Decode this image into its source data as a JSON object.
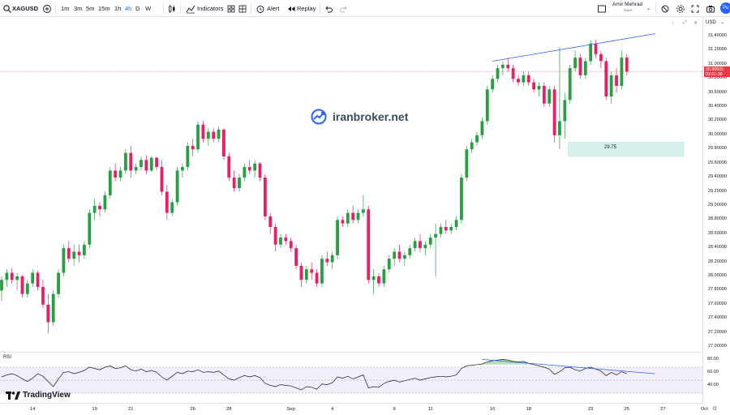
{
  "toolbar": {
    "symbol": "XAGUSD",
    "timeframes": [
      "1m",
      "3m",
      "5m",
      "15m",
      "1h",
      "4h",
      "D",
      "W"
    ],
    "active_timeframe": "4h",
    "indicators_label": "Indicators",
    "alert_label": "Alert",
    "replay_label": "Replay",
    "user_name": "Amir Mehrad",
    "user_status": "Save",
    "publish_label": "Pu"
  },
  "price_axis": {
    "currency": "USD",
    "labels": [
      "31.40000",
      "31.20000",
      "31.00000",
      "30.80000",
      "30.60000",
      "30.40000",
      "30.20000",
      "30.00000",
      "29.80000",
      "29.60000",
      "29.40000",
      "29.20000",
      "29.00000",
      "28.80000",
      "28.60000",
      "28.40000",
      "28.20000",
      "28.00000",
      "27.80000",
      "27.60000",
      "27.40000",
      "27.20000",
      "27.00000"
    ],
    "current_price": "30.90500",
    "countdown": "02:01:38"
  },
  "rsi": {
    "label": "RSI",
    "levels": [
      "80.00",
      "60.00",
      "40.00"
    ]
  },
  "time_axis": [
    "14",
    "19",
    "21",
    "26",
    "28",
    "Sep",
    "4",
    "9",
    "11",
    "16",
    "18",
    "23",
    "25",
    "27",
    "Oct"
  ],
  "annotations": {
    "zone_label": "29.75"
  },
  "watermark": "iranbroker.net",
  "brand": "TradingView",
  "colors": {
    "up": "#26a040",
    "down": "#e91e63",
    "trendline": "#2962ff",
    "zone": "#d6f0ec",
    "price_tag": "#f23645",
    "accent": "#2962ff"
  },
  "chart_data": {
    "type": "candlestick",
    "ylim": [
      27.0,
      31.5
    ],
    "candles": [
      [
        27.8,
        28.0,
        27.65,
        27.95
      ],
      [
        27.95,
        28.1,
        27.85,
        28.05
      ],
      [
        28.05,
        28.12,
        27.9,
        27.95
      ],
      [
        27.95,
        28.05,
        27.8,
        28.0
      ],
      [
        28.0,
        28.02,
        27.7,
        27.75
      ],
      [
        27.75,
        27.95,
        27.7,
        27.9
      ],
      [
        27.9,
        28.1,
        27.85,
        28.05
      ],
      [
        28.05,
        28.08,
        27.8,
        27.85
      ],
      [
        27.85,
        27.95,
        27.55,
        27.6
      ],
      [
        27.6,
        27.75,
        27.2,
        27.35
      ],
      [
        27.35,
        27.8,
        27.3,
        27.75
      ],
      [
        27.75,
        28.1,
        27.7,
        28.05
      ],
      [
        28.05,
        28.45,
        28.0,
        28.4
      ],
      [
        28.4,
        28.5,
        28.2,
        28.25
      ],
      [
        28.25,
        28.45,
        28.15,
        28.35
      ],
      [
        28.35,
        28.45,
        28.2,
        28.3
      ],
      [
        28.3,
        28.5,
        28.25,
        28.45
      ],
      [
        28.45,
        28.95,
        28.4,
        28.9
      ],
      [
        28.9,
        29.1,
        28.8,
        29.0
      ],
      [
        29.0,
        29.05,
        28.85,
        28.95
      ],
      [
        28.95,
        29.2,
        28.9,
        29.15
      ],
      [
        29.15,
        29.55,
        29.1,
        29.5
      ],
      [
        29.5,
        29.6,
        29.35,
        29.4
      ],
      [
        29.4,
        29.55,
        29.35,
        29.5
      ],
      [
        29.5,
        29.8,
        29.45,
        29.75
      ],
      [
        29.75,
        29.85,
        29.4,
        29.5
      ],
      [
        29.5,
        29.6,
        29.45,
        29.55
      ],
      [
        29.55,
        29.7,
        29.5,
        29.65
      ],
      [
        29.65,
        29.72,
        29.45,
        29.5
      ],
      [
        29.5,
        29.7,
        29.48,
        29.68
      ],
      [
        29.68,
        29.7,
        29.5,
        29.55
      ],
      [
        29.55,
        29.65,
        29.15,
        29.2
      ],
      [
        29.2,
        29.3,
        28.8,
        28.9
      ],
      [
        28.9,
        29.1,
        28.85,
        29.05
      ],
      [
        29.05,
        29.55,
        29.0,
        29.5
      ],
      [
        29.5,
        29.6,
        29.4,
        29.55
      ],
      [
        29.55,
        29.9,
        29.5,
        29.85
      ],
      [
        29.85,
        29.95,
        29.7,
        29.8
      ],
      [
        29.8,
        30.2,
        29.75,
        30.15
      ],
      [
        30.15,
        30.2,
        29.9,
        29.95
      ],
      [
        29.95,
        30.1,
        29.85,
        30.05
      ],
      [
        30.05,
        30.1,
        29.9,
        29.95
      ],
      [
        29.95,
        30.12,
        29.9,
        30.08
      ],
      [
        30.08,
        30.1,
        29.65,
        29.7
      ],
      [
        29.7,
        29.75,
        29.35,
        29.4
      ],
      [
        29.4,
        29.5,
        29.2,
        29.25
      ],
      [
        29.25,
        29.45,
        29.2,
        29.4
      ],
      [
        29.4,
        29.6,
        29.35,
        29.55
      ],
      [
        29.55,
        29.65,
        29.45,
        29.5
      ],
      [
        29.5,
        29.65,
        29.4,
        29.6
      ],
      [
        29.6,
        29.62,
        29.35,
        29.4
      ],
      [
        29.4,
        29.45,
        28.8,
        28.85
      ],
      [
        28.85,
        28.9,
        28.6,
        28.7
      ],
      [
        28.7,
        28.75,
        28.35,
        28.45
      ],
      [
        28.45,
        28.6,
        28.4,
        28.55
      ],
      [
        28.55,
        28.6,
        28.45,
        28.5
      ],
      [
        28.5,
        28.55,
        28.35,
        28.4
      ],
      [
        28.4,
        28.45,
        28.1,
        28.15
      ],
      [
        28.15,
        28.2,
        27.85,
        27.95
      ],
      [
        27.95,
        28.15,
        27.9,
        28.1
      ],
      [
        28.1,
        28.2,
        27.95,
        28.05
      ],
      [
        28.05,
        28.1,
        27.85,
        27.9
      ],
      [
        27.9,
        28.3,
        27.85,
        28.25
      ],
      [
        28.25,
        28.35,
        28.15,
        28.2
      ],
      [
        28.2,
        28.35,
        28.1,
        28.3
      ],
      [
        28.3,
        28.85,
        28.25,
        28.8
      ],
      [
        28.8,
        28.85,
        28.7,
        28.75
      ],
      [
        28.75,
        28.95,
        28.7,
        28.9
      ],
      [
        28.9,
        29.0,
        28.75,
        28.8
      ],
      [
        28.8,
        28.95,
        28.75,
        28.9
      ],
      [
        28.9,
        29.15,
        28.85,
        28.95
      ],
      [
        28.95,
        29.0,
        27.9,
        27.95
      ],
      [
        27.95,
        28.1,
        27.75,
        28.0
      ],
      [
        28.0,
        28.05,
        27.85,
        27.9
      ],
      [
        27.9,
        28.15,
        27.85,
        28.1
      ],
      [
        28.1,
        28.3,
        28.05,
        28.25
      ],
      [
        28.25,
        28.4,
        28.15,
        28.35
      ],
      [
        28.35,
        28.45,
        28.2,
        28.25
      ],
      [
        28.25,
        28.35,
        28.15,
        28.3
      ],
      [
        28.3,
        28.45,
        28.25,
        28.4
      ],
      [
        28.4,
        28.55,
        28.35,
        28.5
      ],
      [
        28.5,
        28.6,
        28.35,
        28.4
      ],
      [
        28.4,
        28.5,
        28.3,
        28.45
      ],
      [
        28.45,
        28.6,
        28.4,
        28.55
      ],
      [
        28.55,
        28.75,
        28.0,
        28.6
      ],
      [
        28.6,
        28.75,
        28.55,
        28.7
      ],
      [
        28.7,
        28.8,
        28.6,
        28.65
      ],
      [
        28.65,
        28.75,
        28.6,
        28.7
      ],
      [
        28.7,
        28.85,
        28.65,
        28.8
      ],
      [
        28.8,
        29.45,
        28.75,
        29.4
      ],
      [
        29.4,
        29.85,
        29.35,
        29.8
      ],
      [
        29.8,
        29.95,
        29.75,
        29.9
      ],
      [
        29.9,
        30.05,
        29.85,
        30.0
      ],
      [
        30.0,
        30.25,
        29.95,
        30.2
      ],
      [
        30.2,
        30.7,
        30.15,
        30.65
      ],
      [
        30.65,
        30.85,
        30.6,
        30.8
      ],
      [
        30.8,
        31.0,
        30.75,
        30.95
      ],
      [
        30.95,
        31.05,
        30.85,
        31.0
      ],
      [
        31.0,
        31.1,
        30.9,
        30.95
      ],
      [
        30.95,
        31.0,
        30.75,
        30.8
      ],
      [
        30.8,
        30.85,
        30.7,
        30.75
      ],
      [
        30.75,
        30.9,
        30.7,
        30.85
      ],
      [
        30.85,
        30.9,
        30.7,
        30.75
      ],
      [
        30.75,
        30.8,
        30.6,
        30.65
      ],
      [
        30.65,
        30.75,
        30.55,
        30.7
      ],
      [
        30.7,
        30.75,
        30.4,
        30.45
      ],
      [
        30.45,
        30.7,
        30.4,
        30.65
      ],
      [
        30.65,
        30.7,
        29.9,
        30.0
      ],
      [
        30.0,
        31.25,
        29.8,
        30.2
      ],
      [
        30.2,
        30.6,
        29.95,
        30.5
      ],
      [
        30.5,
        31.0,
        30.45,
        30.95
      ],
      [
        30.95,
        31.2,
        30.9,
        31.1
      ],
      [
        31.1,
        31.15,
        30.8,
        30.85
      ],
      [
        30.85,
        31.1,
        30.8,
        31.05
      ],
      [
        31.05,
        31.35,
        31.0,
        31.3
      ],
      [
        31.3,
        31.35,
        31.1,
        31.15
      ],
      [
        31.15,
        31.2,
        30.95,
        31.05
      ],
      [
        31.05,
        31.1,
        30.5,
        30.55
      ],
      [
        30.55,
        30.9,
        30.45,
        30.85
      ],
      [
        30.85,
        30.95,
        30.6,
        30.7
      ],
      [
        30.7,
        31.2,
        30.65,
        31.1
      ],
      [
        31.1,
        31.15,
        30.85,
        30.9
      ]
    ],
    "trendline": [
      [
        95,
        31.05
      ],
      [
        125,
        31.44
      ]
    ],
    "zone": {
      "from_index": 110,
      "to_index": 139,
      "low": 29.7,
      "high": 29.9,
      "label": "29.75"
    },
    "rsi_ylim": [
      20,
      90
    ],
    "rsi_values": [
      55,
      58,
      60,
      57,
      52,
      48,
      53,
      60,
      56,
      48,
      40,
      52,
      62,
      63,
      60,
      62,
      65,
      70,
      68,
      66,
      70,
      72,
      68,
      69,
      72,
      66,
      64,
      67,
      63,
      65,
      62,
      55,
      50,
      56,
      62,
      60,
      64,
      63,
      66,
      62,
      63,
      62,
      64,
      58,
      52,
      50,
      54,
      57,
      55,
      57,
      54,
      45,
      42,
      40,
      43,
      42,
      41,
      38,
      35,
      40,
      39,
      36,
      44,
      43,
      46,
      55,
      53,
      56,
      52,
      55,
      58,
      38,
      40,
      39,
      45,
      48,
      50,
      47,
      49,
      51,
      53,
      50,
      52,
      54,
      55,
      56,
      55,
      56,
      58,
      68,
      72,
      73,
      74,
      75,
      78,
      80,
      81,
      82,
      81,
      79,
      78,
      79,
      76,
      74,
      72,
      70,
      67,
      59,
      63,
      69,
      70,
      66,
      64,
      68,
      70,
      67,
      64,
      57,
      62,
      58,
      63,
      60
    ]
  }
}
